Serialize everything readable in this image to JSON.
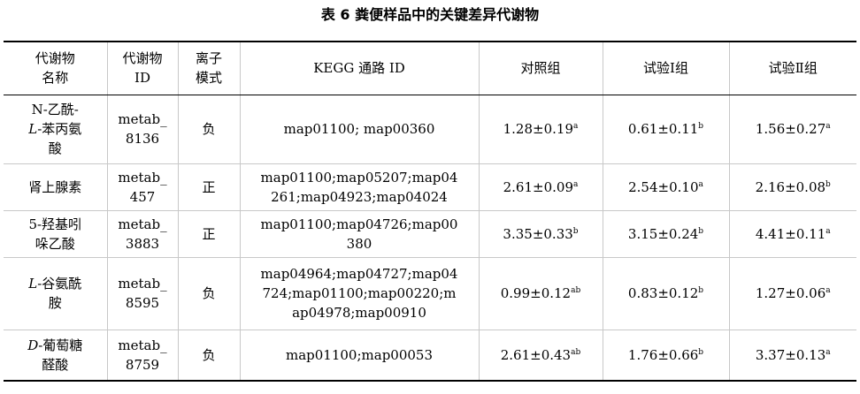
{
  "title": "表 6 粪便样品中的关键差异代谢物",
  "headers": {
    "name": [
      "代谢物",
      "名称"
    ],
    "id": [
      "代谢物",
      "ID"
    ],
    "mode": [
      "离子",
      "模式"
    ],
    "kegg": "KEGG 通路 ID",
    "control": "对照组",
    "trial1": "试验Ⅰ组",
    "trial2": "试验Ⅱ组"
  },
  "rows": [
    {
      "name": [
        "N-乙酰-",
        "L",
        "-苯丙氨",
        "酸"
      ],
      "id": [
        "metab_",
        "8136"
      ],
      "mode": "负",
      "kegg": "map01100; map00360",
      "control": {
        "v": "1.28±0.19",
        "s": "a"
      },
      "trial1": {
        "v": "0.61±0.11",
        "s": "b"
      },
      "trial2": {
        "v": "1.56±0.27",
        "s": "a"
      }
    },
    {
      "name": [
        "肾上腺素"
      ],
      "id": [
        "metab_",
        "457"
      ],
      "mode": "正",
      "kegg": [
        "map01100;map05207;map04",
        "261;map04923;map04024"
      ],
      "control": {
        "v": "2.61±0.09",
        "s": "a"
      },
      "trial1": {
        "v": "2.54±0.10",
        "s": "a"
      },
      "trial2": {
        "v": "2.16±0.08",
        "s": "b"
      }
    },
    {
      "name": [
        "5-羟基吲",
        "哚乙酸"
      ],
      "id": [
        "metab_",
        "3883"
      ],
      "mode": "正",
      "kegg": [
        "map01100;map04726;map00",
        "380"
      ],
      "control": {
        "v": "3.35±0.33",
        "s": "b"
      },
      "trial1": {
        "v": "3.15±0.24",
        "s": "b"
      },
      "trial2": {
        "v": "4.41±0.11",
        "s": "a"
      }
    },
    {
      "name": [
        "L",
        "-谷氨酰",
        "胺"
      ],
      "id": [
        "metab_",
        "8595"
      ],
      "mode": "负",
      "kegg": [
        "map04964;map04727;map04",
        "724;map01100;map00220;m",
        "ap04978;map00910"
      ],
      "control": {
        "v": "0.99±0.12",
        "s": "ab"
      },
      "trial1": {
        "v": "0.83±0.12",
        "s": "b"
      },
      "trial2": {
        "v": "1.27±0.06",
        "s": "a"
      }
    },
    {
      "name": [
        "D",
        "-葡萄糖",
        "醛酸"
      ],
      "id": [
        "metab_",
        "8759"
      ],
      "mode": "负",
      "kegg": "map01100;map00053",
      "control": {
        "v": "2.61±0.43",
        "s": "ab"
      },
      "trial1": {
        "v": "1.76±0.66",
        "s": "b"
      },
      "trial2": {
        "v": "3.37±0.13",
        "s": "a"
      }
    }
  ]
}
